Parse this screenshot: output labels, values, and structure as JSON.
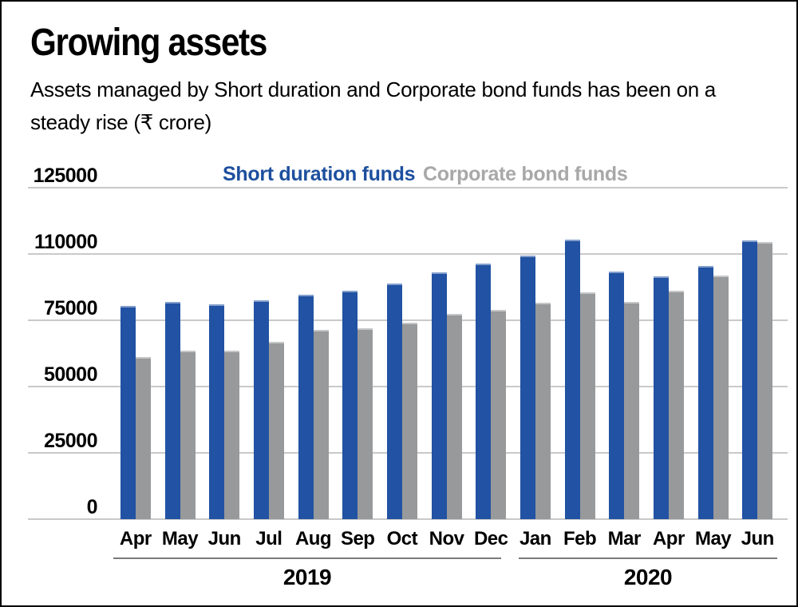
{
  "header": {
    "title": "Growing assets",
    "subtitle": "Assets managed by Short duration and Corporate bond funds has been on a\nsteady rise (₹ crore)"
  },
  "legend": [
    {
      "label": "Short duration funds",
      "color": "#1d4f9e"
    },
    {
      "label": "Corporate bond funds",
      "color": "#a8a8a8"
    }
  ],
  "colors": {
    "short_duration_bar": "#2152a3",
    "corporate_bond_bar": "#98999b",
    "gridline": "#c9c9c9",
    "year_line": "#7a7a7a"
  },
  "chart_data": {
    "type": "bar",
    "x": [
      "Apr",
      "May",
      "Jun",
      "Jul",
      "Aug",
      "Sep",
      "Oct",
      "Nov",
      "Dec",
      "Jan",
      "Feb",
      "Mar",
      "Apr",
      "May",
      "Jun"
    ],
    "x_groups": [
      {
        "label": "2019",
        "span": 9
      },
      {
        "label": "2020",
        "span": 6
      }
    ],
    "series": [
      {
        "name": "Short duration funds",
        "color": "#2152a3",
        "values": [
          80500,
          82000,
          81000,
          82500,
          84500,
          86000,
          89000,
          93000,
          96500,
          99500,
          105500,
          93500,
          91500,
          95500,
          105000
        ]
      },
      {
        "name": "Corporate bond funds",
        "color": "#98999b",
        "values": [
          61000,
          63500,
          63500,
          67000,
          71500,
          72000,
          74000,
          77500,
          79000,
          81500,
          85500,
          82000,
          86000,
          92000,
          104500
        ]
      }
    ],
    "ylim": [
      0,
      125000
    ],
    "y_tick_labels": [
      "125000",
      "110000",
      "75000",
      "50000",
      "25000",
      "0"
    ],
    "grid": true,
    "legend_position": "top",
    "unit": "₹ crore"
  }
}
